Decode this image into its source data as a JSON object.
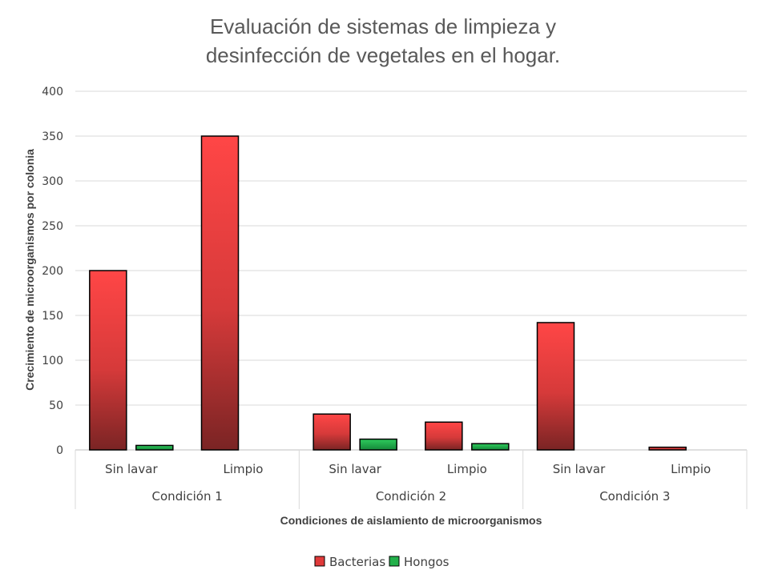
{
  "chart_data": {
    "type": "bar",
    "title_lines": [
      "Evaluación de sistemas de limpieza y",
      "desinfección de vegetales  en el hogar."
    ],
    "groups": [
      "Condición 1",
      "Condición 2",
      "Condición 3"
    ],
    "categories": [
      "Sin lavar",
      "Limpio",
      "Sin lavar",
      "Limpio",
      "Sin lavar",
      "Limpio"
    ],
    "series": [
      {
        "name": "Bacterias",
        "values": [
          200,
          350,
          40,
          31,
          142,
          3
        ],
        "color": "#e03a3a"
      },
      {
        "name": "Hongos",
        "values": [
          5,
          0,
          12,
          7,
          0,
          0
        ],
        "color": "#22b04a"
      }
    ],
    "xlabel": "Condiciones de aislamiento de microorganismos",
    "ylabel": "Crecimiento de microorganismos por colonia",
    "ylim": [
      0,
      400
    ],
    "yticks": [
      0,
      50,
      100,
      150,
      200,
      250,
      300,
      350,
      400
    ],
    "grid": true,
    "legend_position": "bottom"
  }
}
